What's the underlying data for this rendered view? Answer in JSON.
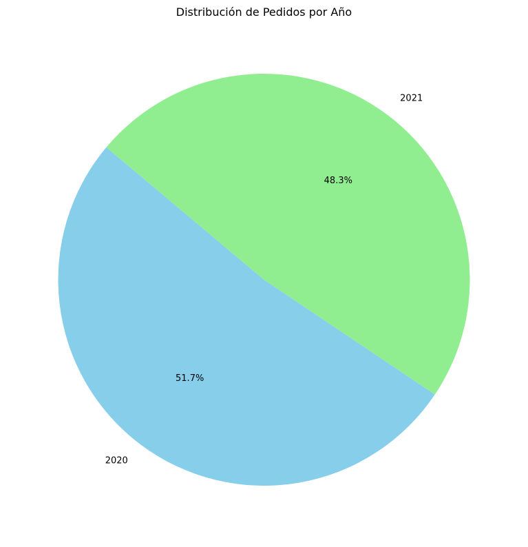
{
  "chart_data": {
    "type": "pie",
    "title": "Distribución de Pedidos por Año",
    "categories": [
      "2020",
      "2021"
    ],
    "values": [
      51.7,
      48.3
    ],
    "percent_labels": [
      "51.7%",
      "48.3%"
    ],
    "colors": [
      "#87CEEB",
      "#90EE90"
    ],
    "start_angle_deg": 140,
    "direction": "counterclockwise",
    "legend": "none"
  }
}
